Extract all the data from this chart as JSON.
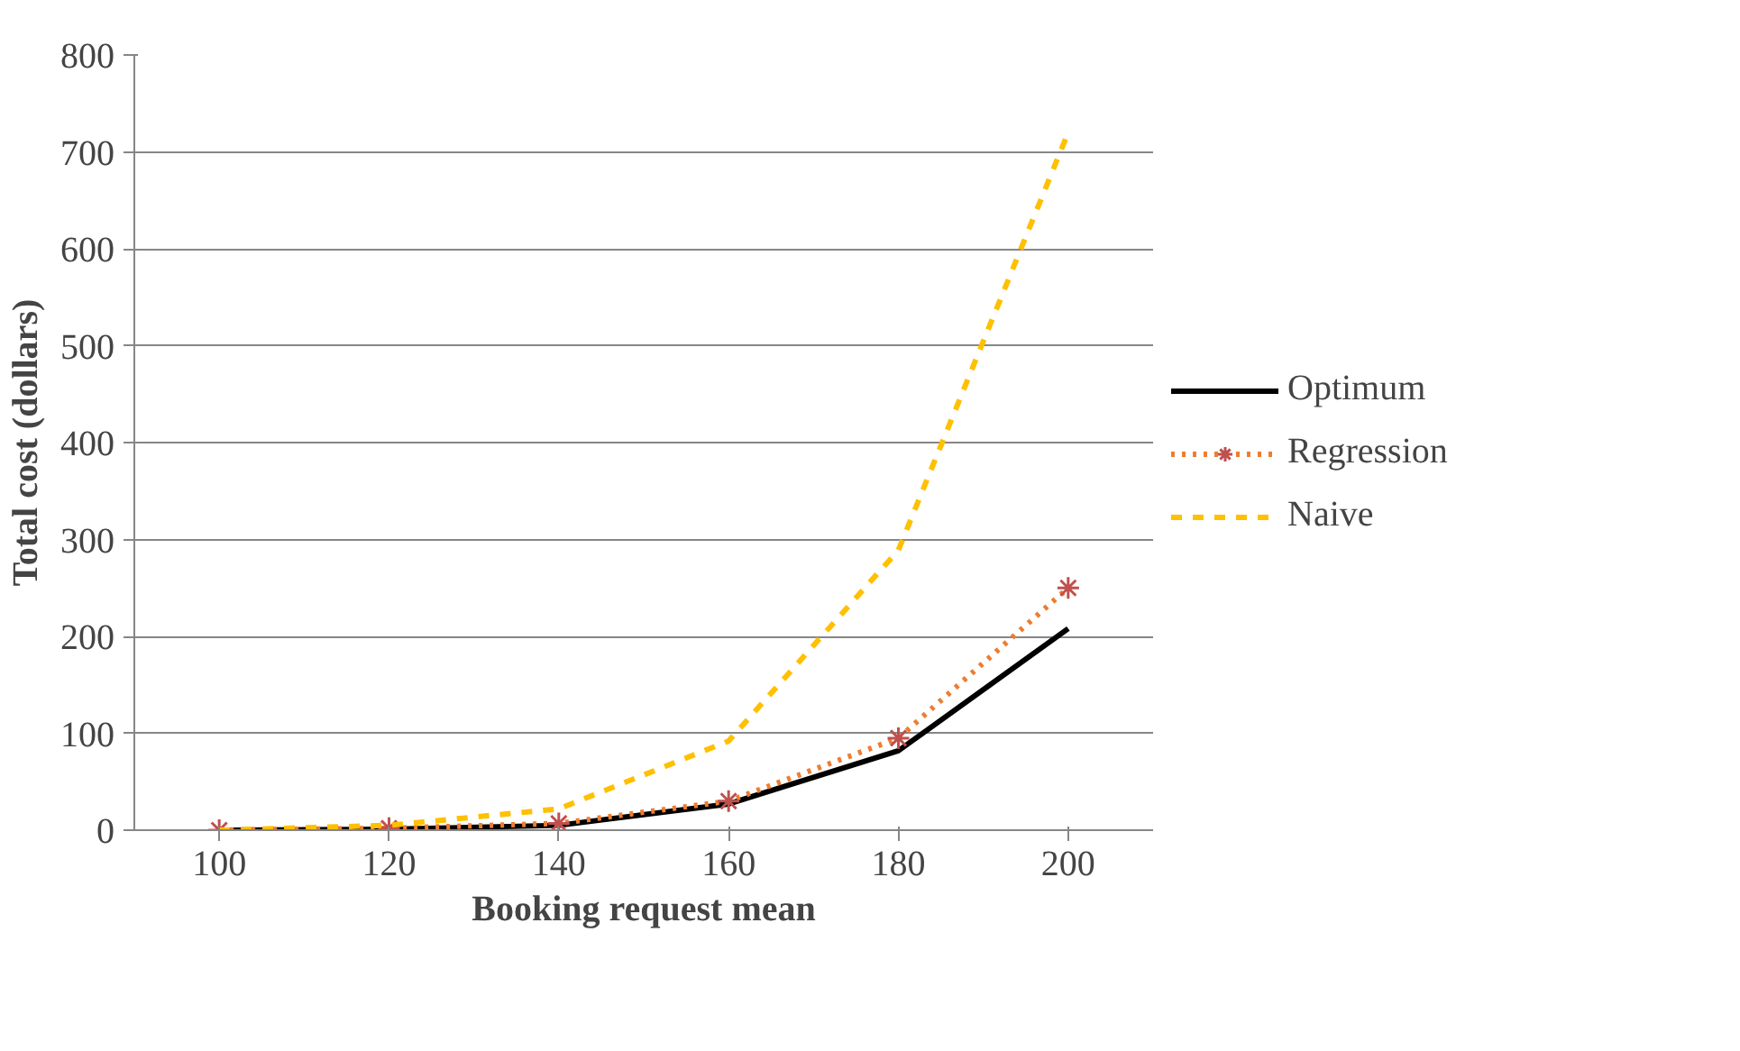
{
  "chart_data": {
    "type": "line",
    "xlabel": "Booking request mean",
    "ylabel": "Total cost (dollars)",
    "categories": [
      "100",
      "120",
      "140",
      "160",
      "180",
      "200"
    ],
    "ylim": [
      0,
      800
    ],
    "yticks": [
      0,
      100,
      200,
      300,
      400,
      500,
      600,
      700,
      800
    ],
    "grid": "y",
    "legend": "right",
    "series": [
      {
        "name": "Optimum",
        "color": "#000000",
        "line_style": "solid",
        "marker": "none",
        "values": [
          0,
          1,
          5,
          27,
          82,
          208
        ]
      },
      {
        "name": "Regression",
        "color": "#ed7d31",
        "line_style": "dotted",
        "marker": "cross",
        "values": [
          0,
          2,
          7,
          30,
          95,
          250
        ]
      },
      {
        "name": "Naive",
        "color": "#ffc000",
        "line_style": "dashed",
        "marker": "none",
        "values": [
          0,
          5,
          22,
          92,
          289,
          720
        ]
      }
    ]
  }
}
